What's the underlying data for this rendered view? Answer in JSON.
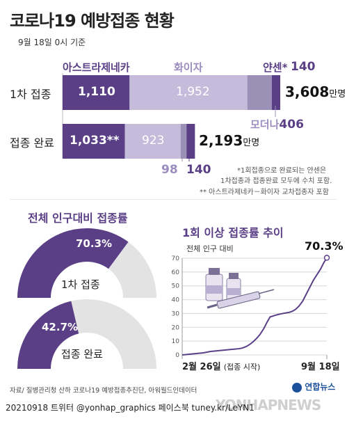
{
  "header": {
    "title": "코로나19 예방접종 현황",
    "subtitle": "9월 18일 0시 기준"
  },
  "vaccine_labels": {
    "astrazeneca": "아스트라제네카",
    "pfizer": "화이자",
    "janssen": "얀센*",
    "moderna": "모더나"
  },
  "colors": {
    "astrazeneca": "#5a3f86",
    "pfizer": "#c5bcdb",
    "moderna": "#9b91b6",
    "janssen": "#5a3f86",
    "gauge_track": "#e3e3e3",
    "line": "#5a3f86"
  },
  "chart_data": [
    {
      "type": "bar",
      "stacked": true,
      "orientation": "horizontal",
      "title": "",
      "unit": "만명",
      "categories": [
        "1차 접종",
        "접종 완료"
      ],
      "series": [
        {
          "name": "아스트라제네카",
          "values": [
            1110,
            1033
          ],
          "labels": [
            "1,110",
            "1,033**"
          ]
        },
        {
          "name": "화이자",
          "values": [
            1952,
            923
          ],
          "labels": [
            "1,952",
            "923"
          ]
        },
        {
          "name": "모더나",
          "values": [
            406,
            98
          ],
          "labels": [
            "406",
            "98"
          ]
        },
        {
          "name": "얀센*",
          "values": [
            140,
            140
          ],
          "labels": [
            "140",
            "140"
          ]
        }
      ],
      "totals": [
        "3,608",
        "2,193"
      ]
    },
    {
      "type": "pie",
      "subtype": "semi-donut",
      "title": "전체 인구대비 접종률",
      "items": [
        {
          "label": "1차 접종",
          "value": 70.3,
          "display": "70.3%"
        },
        {
          "label": "접종 완료",
          "value": 42.7,
          "display": "42.7%"
        }
      ]
    },
    {
      "type": "line",
      "title": "1회 이상  접종률 추이",
      "ylabel": "전체 인구 대비",
      "ylim": [
        0,
        70
      ],
      "yticks": [
        0,
        10,
        20,
        30,
        40,
        50,
        60,
        70
      ],
      "x_start_label": "2월 26일",
      "x_start_note": "(접종 시작)",
      "x_end_label": "9월 18일",
      "final_value_label": "70.3%",
      "x": [
        0,
        10,
        20,
        30,
        40,
        50,
        60,
        70,
        80,
        85,
        90,
        95,
        100,
        105,
        110,
        115,
        120,
        124,
        130,
        135,
        140,
        145,
        150,
        155,
        160,
        165,
        170,
        175,
        180,
        185,
        190,
        195,
        200,
        204
      ],
      "values": [
        0,
        0.5,
        1,
        1.5,
        2.5,
        3,
        3.5,
        4,
        4.5,
        5,
        6,
        7.5,
        9.5,
        12,
        15,
        19,
        24,
        27.5,
        28.5,
        29.2,
        29.8,
        30.3,
        30.7,
        31.5,
        33,
        35.5,
        39,
        44,
        49,
        54,
        58,
        62,
        67,
        70.3
      ]
    }
  ],
  "footnotes": {
    "note1_line1": "*1회접종으로 완료되는 얀센은",
    "note1_line2": "1차접종과 접종완료 모두에 수치 포함.",
    "note2": "** 아스트라제네카－화이자 교차접종자 포함"
  },
  "source": "자료/ 질병관리청 산하 코로나19 예방접종추진단, 아워월드인데이터",
  "footer": "20210918  트위터 @yonhap_graphics  페이스북 tuney.kr/LeYN1",
  "logo": "연합뉴스",
  "watermark": "YONHAPNEWS"
}
